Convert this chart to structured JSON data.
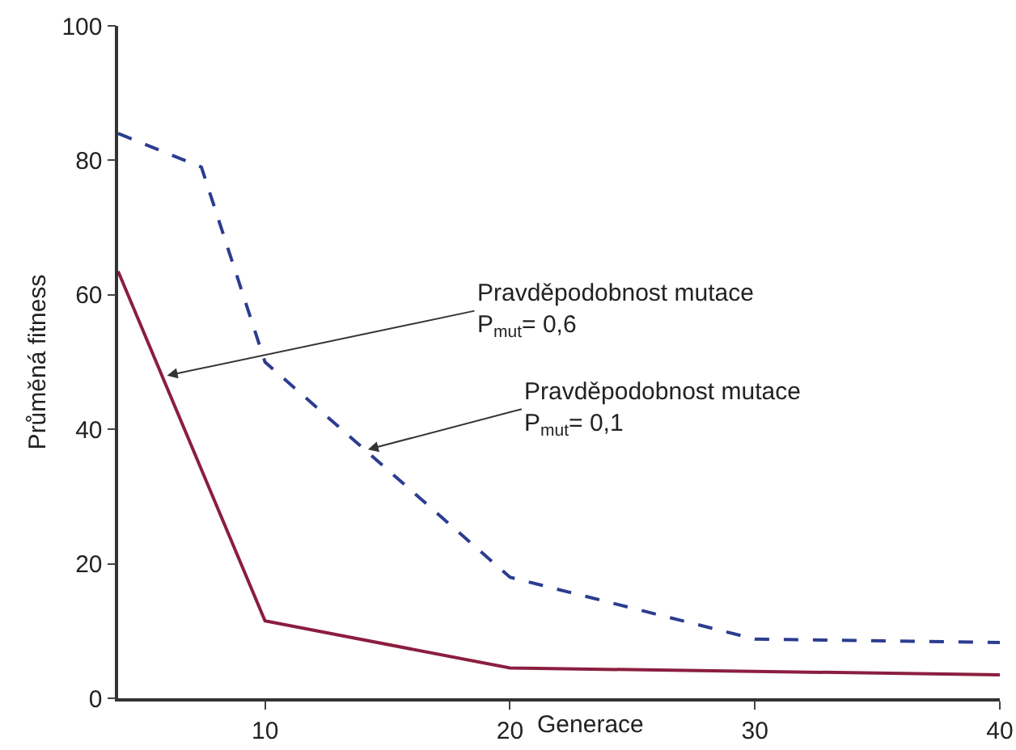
{
  "chart_data": {
    "type": "line",
    "xlabel": "Generace",
    "ylabel": "Průměná fitness",
    "xlim": [
      4,
      40
    ],
    "xticks": [
      10,
      20,
      30,
      40
    ],
    "ylim": [
      0,
      100
    ],
    "yticks": [
      0,
      20,
      40,
      60,
      80,
      100
    ],
    "grid": false,
    "marker": "none",
    "series": [
      {
        "color": "#8b1e3f",
        "line_style": "solid",
        "x": [
          4,
          10,
          20,
          40
        ],
        "values": [
          63.5,
          11.5,
          4.5,
          3.5
        ]
      },
      {
        "color": "#2b3d8f",
        "line_style": "dashed",
        "x": [
          4,
          7.4,
          10,
          20,
          30,
          40
        ],
        "values": [
          84,
          79,
          50,
          18,
          8.8,
          8.3
        ]
      }
    ],
    "annotations": [
      {
        "text": "Pravděpodobnost mutace\nP$_{mut}$= 0,6",
        "x": 6,
        "y": 48
      },
      {
        "text": "Pravděpodobnost mutace\nP$_{mut}$= 0,1",
        "x": 14.2,
        "y": 37
      }
    ]
  }
}
